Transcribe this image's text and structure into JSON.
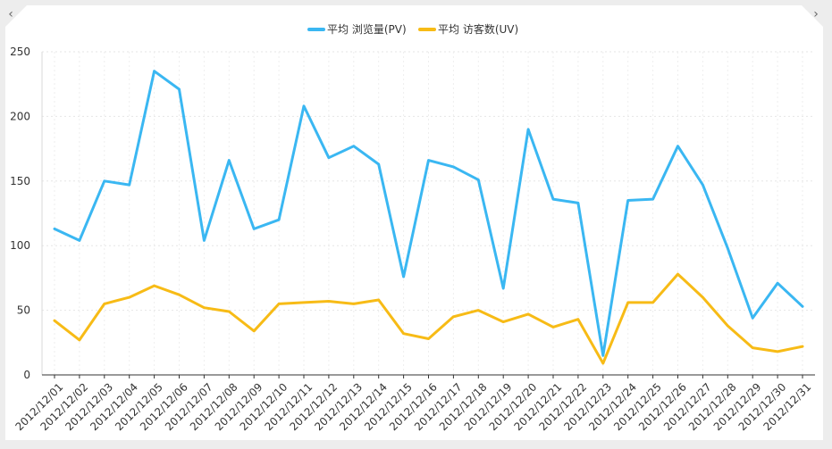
{
  "nav": {
    "prev_icon": "‹",
    "next_icon": "›"
  },
  "chart_data": {
    "type": "line",
    "categories": [
      "2012/12/01",
      "2012/12/02",
      "2012/12/03",
      "2012/12/04",
      "2012/12/05",
      "2012/12/06",
      "2012/12/07",
      "2012/12/08",
      "2012/12/09",
      "2012/12/10",
      "2012/12/11",
      "2012/12/12",
      "2012/12/13",
      "2012/12/14",
      "2012/12/15",
      "2012/12/16",
      "2012/12/17",
      "2012/12/18",
      "2012/12/19",
      "2012/12/20",
      "2012/12/21",
      "2012/12/22",
      "2012/12/23",
      "2012/12/24",
      "2012/12/25",
      "2012/12/26",
      "2012/12/27",
      "2012/12/28",
      "2012/12/29",
      "2012/12/30",
      "2012/12/31"
    ],
    "series": [
      {
        "name": "平均 浏览量(PV)",
        "color": "#3ab7f2",
        "values": [
          113,
          104,
          150,
          147,
          235,
          221,
          104,
          166,
          113,
          120,
          208,
          168,
          177,
          163,
          76,
          166,
          161,
          151,
          67,
          190,
          136,
          133,
          15,
          135,
          136,
          177,
          147,
          98,
          44,
          71,
          53
        ]
      },
      {
        "name": "平均 访客数(UV)",
        "color": "#f7bb16",
        "values": [
          42,
          27,
          55,
          60,
          69,
          62,
          52,
          49,
          34,
          55,
          56,
          57,
          55,
          58,
          32,
          28,
          45,
          50,
          41,
          47,
          37,
          43,
          9,
          56,
          56,
          78,
          60,
          38,
          21,
          18,
          22
        ]
      }
    ],
    "ylim": [
      0,
      250
    ],
    "yticks": [
      0,
      50,
      100,
      150,
      200,
      250
    ],
    "grid": true,
    "legend": "top-center"
  }
}
